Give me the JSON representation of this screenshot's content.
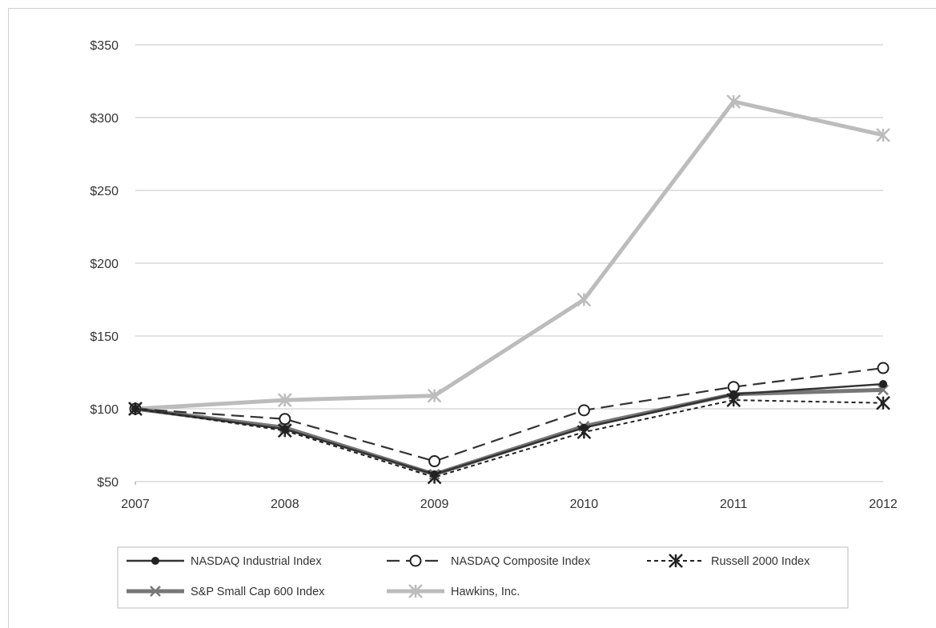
{
  "chart_data": {
    "type": "line",
    "x": [
      "2007",
      "2008",
      "2009",
      "2010",
      "2011",
      "2012"
    ],
    "ylim": [
      50,
      350
    ],
    "yticks": [
      50,
      100,
      150,
      200,
      250,
      300,
      350
    ],
    "ytick_labels": [
      "$50",
      "$100",
      "$150",
      "$200",
      "$250",
      "$300",
      "$350"
    ],
    "grid": true,
    "legend_position": "bottom",
    "series": [
      {
        "name": "NASDAQ Industrial Index",
        "values": [
          100,
          86,
          55,
          87,
          110,
          117
        ],
        "color": "#333333",
        "style": "solid",
        "marker": "dot"
      },
      {
        "name": "NASDAQ Composite Index",
        "values": [
          100,
          93,
          64,
          99,
          115,
          128
        ],
        "color": "#333333",
        "style": "dashed",
        "marker": "open-circle"
      },
      {
        "name": "Russell 2000 Index",
        "values": [
          100,
          85,
          53,
          84,
          106,
          104
        ],
        "color": "#222222",
        "style": "dotted",
        "marker": "star"
      },
      {
        "name": "S&P Small Cap 600 Index",
        "values": [
          100,
          87,
          55,
          88,
          110,
          113
        ],
        "color": "#777777",
        "style": "thick",
        "marker": "cross"
      },
      {
        "name": "Hawkins, Inc.",
        "values": [
          100,
          106,
          109,
          175,
          311,
          288
        ],
        "color": "#bcbcbc",
        "style": "thick",
        "marker": "star"
      }
    ]
  }
}
